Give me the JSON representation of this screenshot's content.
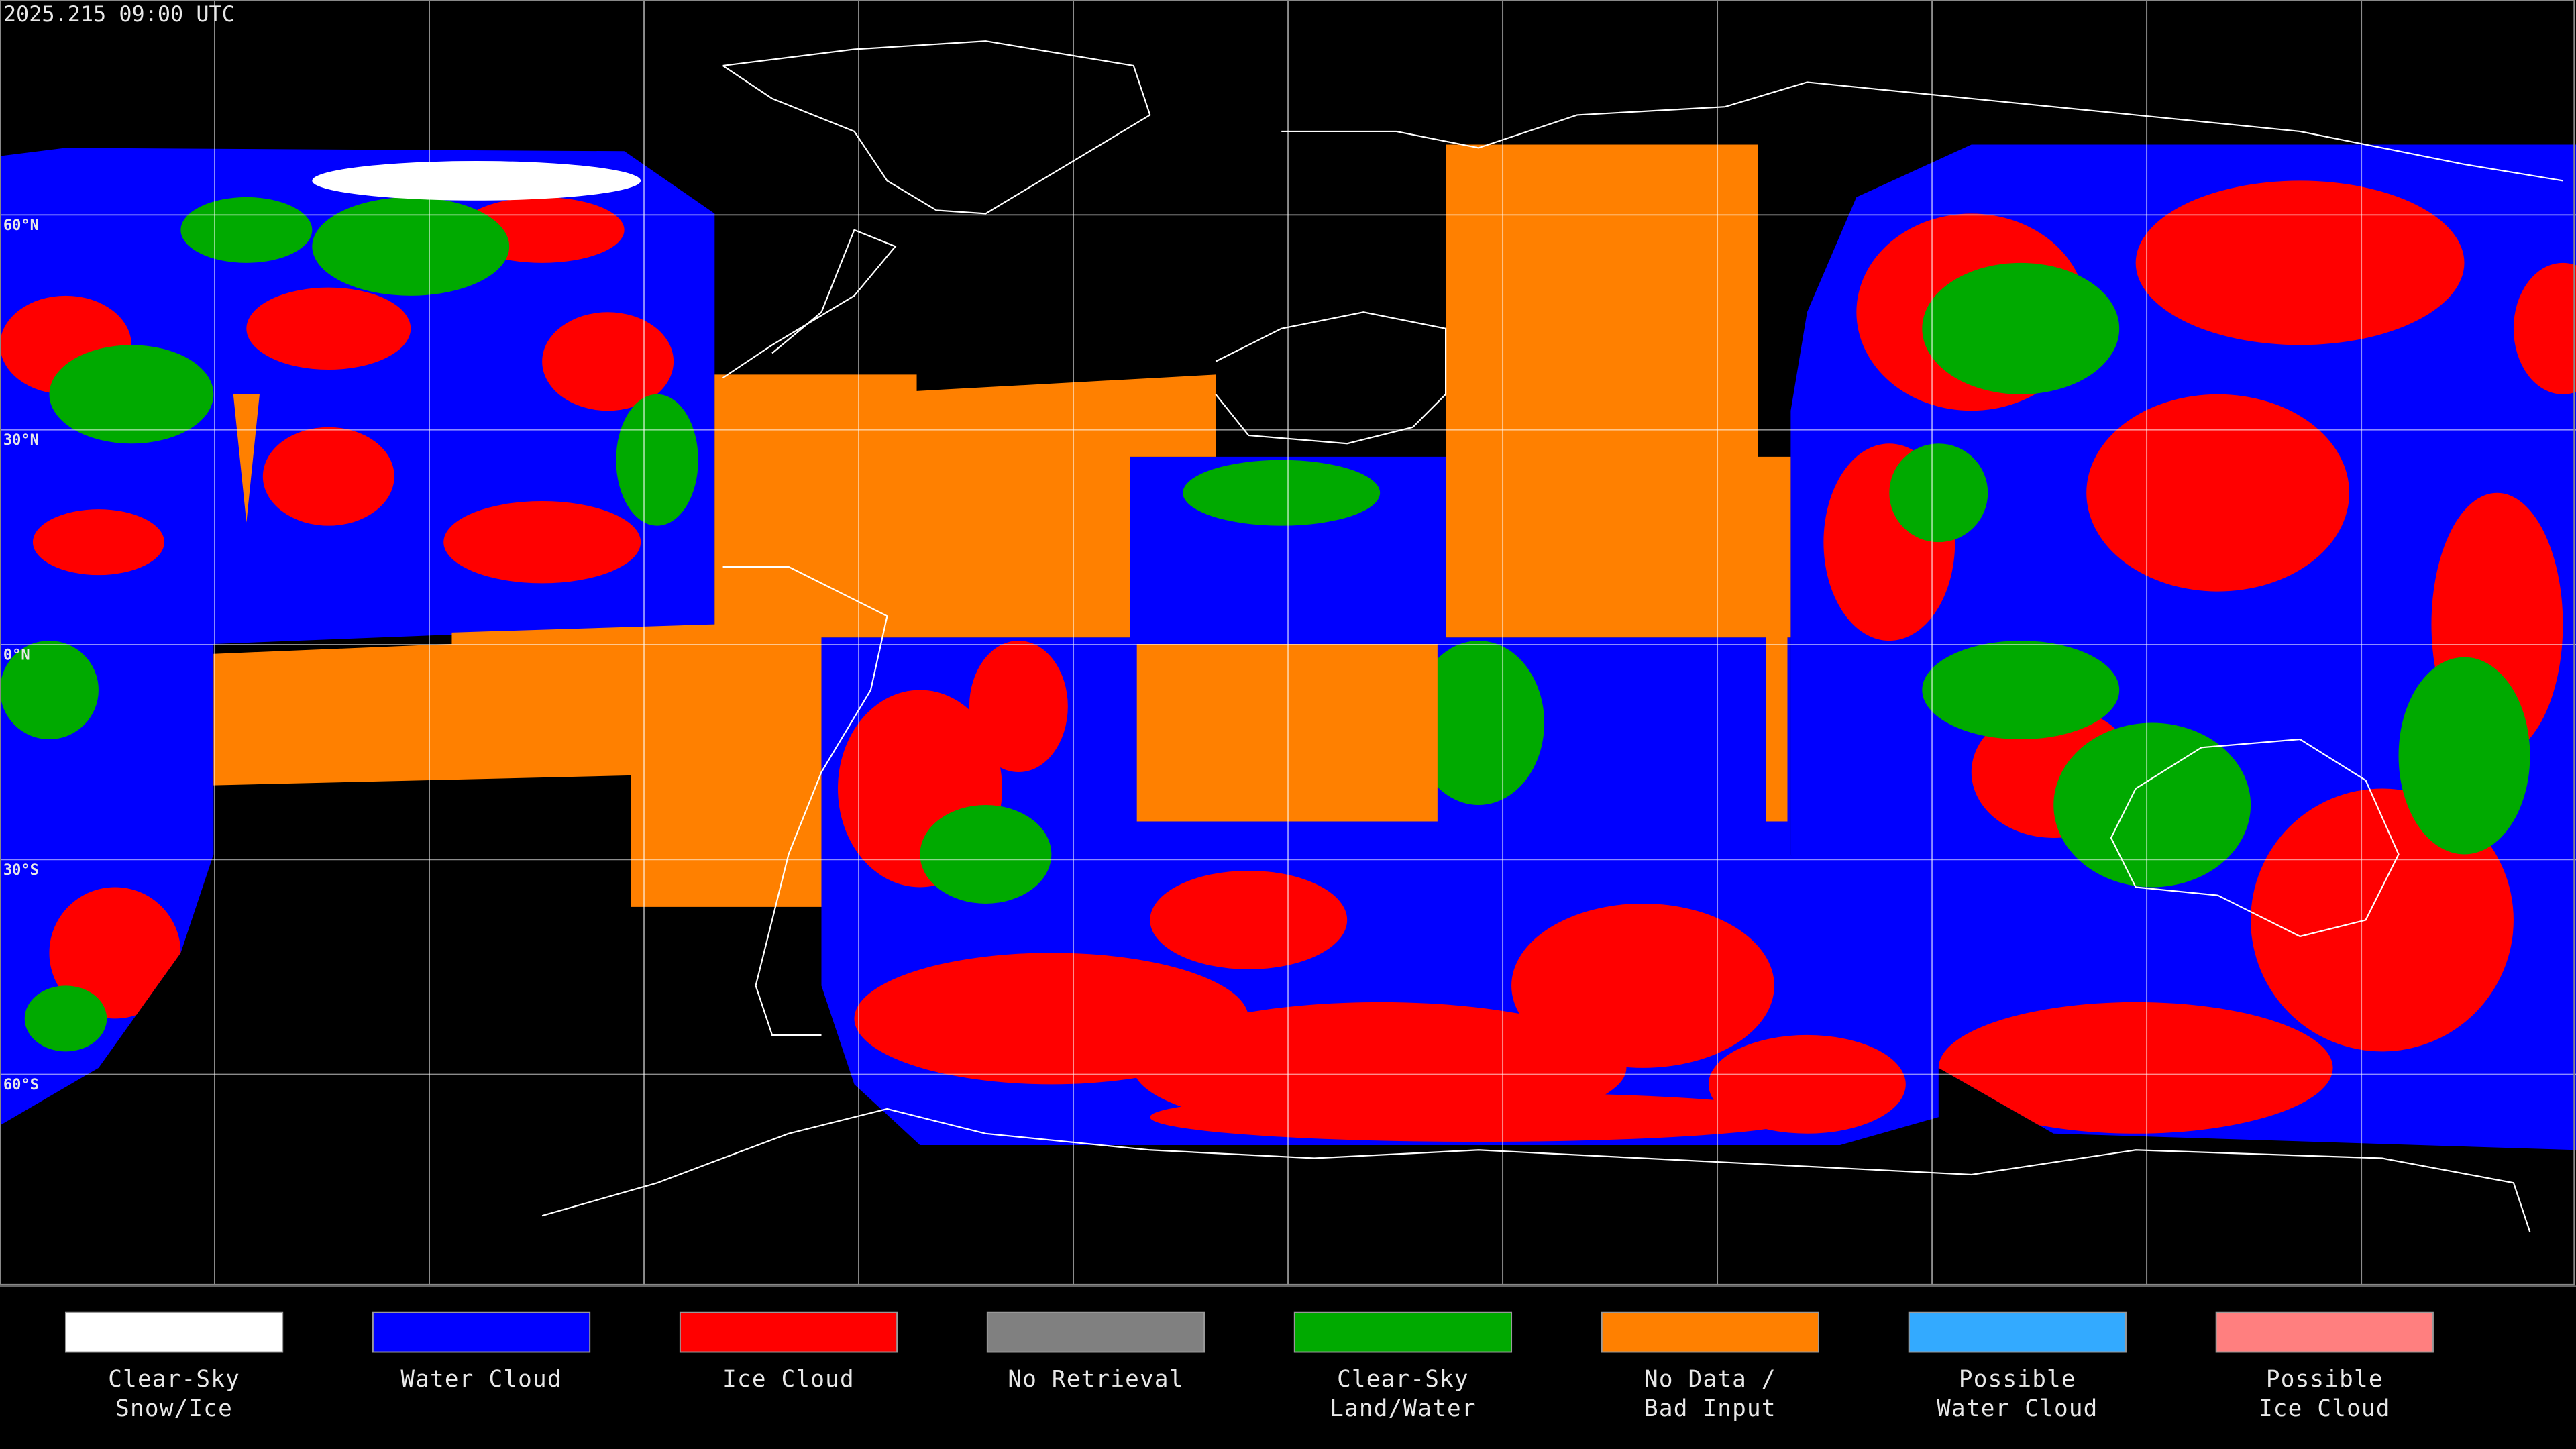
{
  "header": {
    "timestamp": "2025.215 09:00 UTC"
  },
  "latitude_labels": [
    "60°N",
    "30°N",
    "0°N",
    "30°S",
    "60°S"
  ],
  "legend": [
    {
      "color": "#ffffff",
      "label": [
        "Clear-Sky",
        "Snow/Ice"
      ]
    },
    {
      "color": "#0000ff",
      "label": [
        "Water Cloud"
      ]
    },
    {
      "color": "#ff0000",
      "label": [
        "Ice Cloud"
      ]
    },
    {
      "color": "#808080",
      "label": [
        "No Retrieval"
      ]
    },
    {
      "color": "#00aa00",
      "label": [
        "Clear-Sky",
        "Land/Water"
      ]
    },
    {
      "color": "#ff8000",
      "label": [
        "No Data /",
        "Bad Input"
      ]
    },
    {
      "color": "#33aaff",
      "label": [
        "Possible",
        "Water Cloud"
      ]
    },
    {
      "color": "#ff7f7f",
      "label": [
        "Possible",
        "Ice Cloud"
      ]
    }
  ]
}
